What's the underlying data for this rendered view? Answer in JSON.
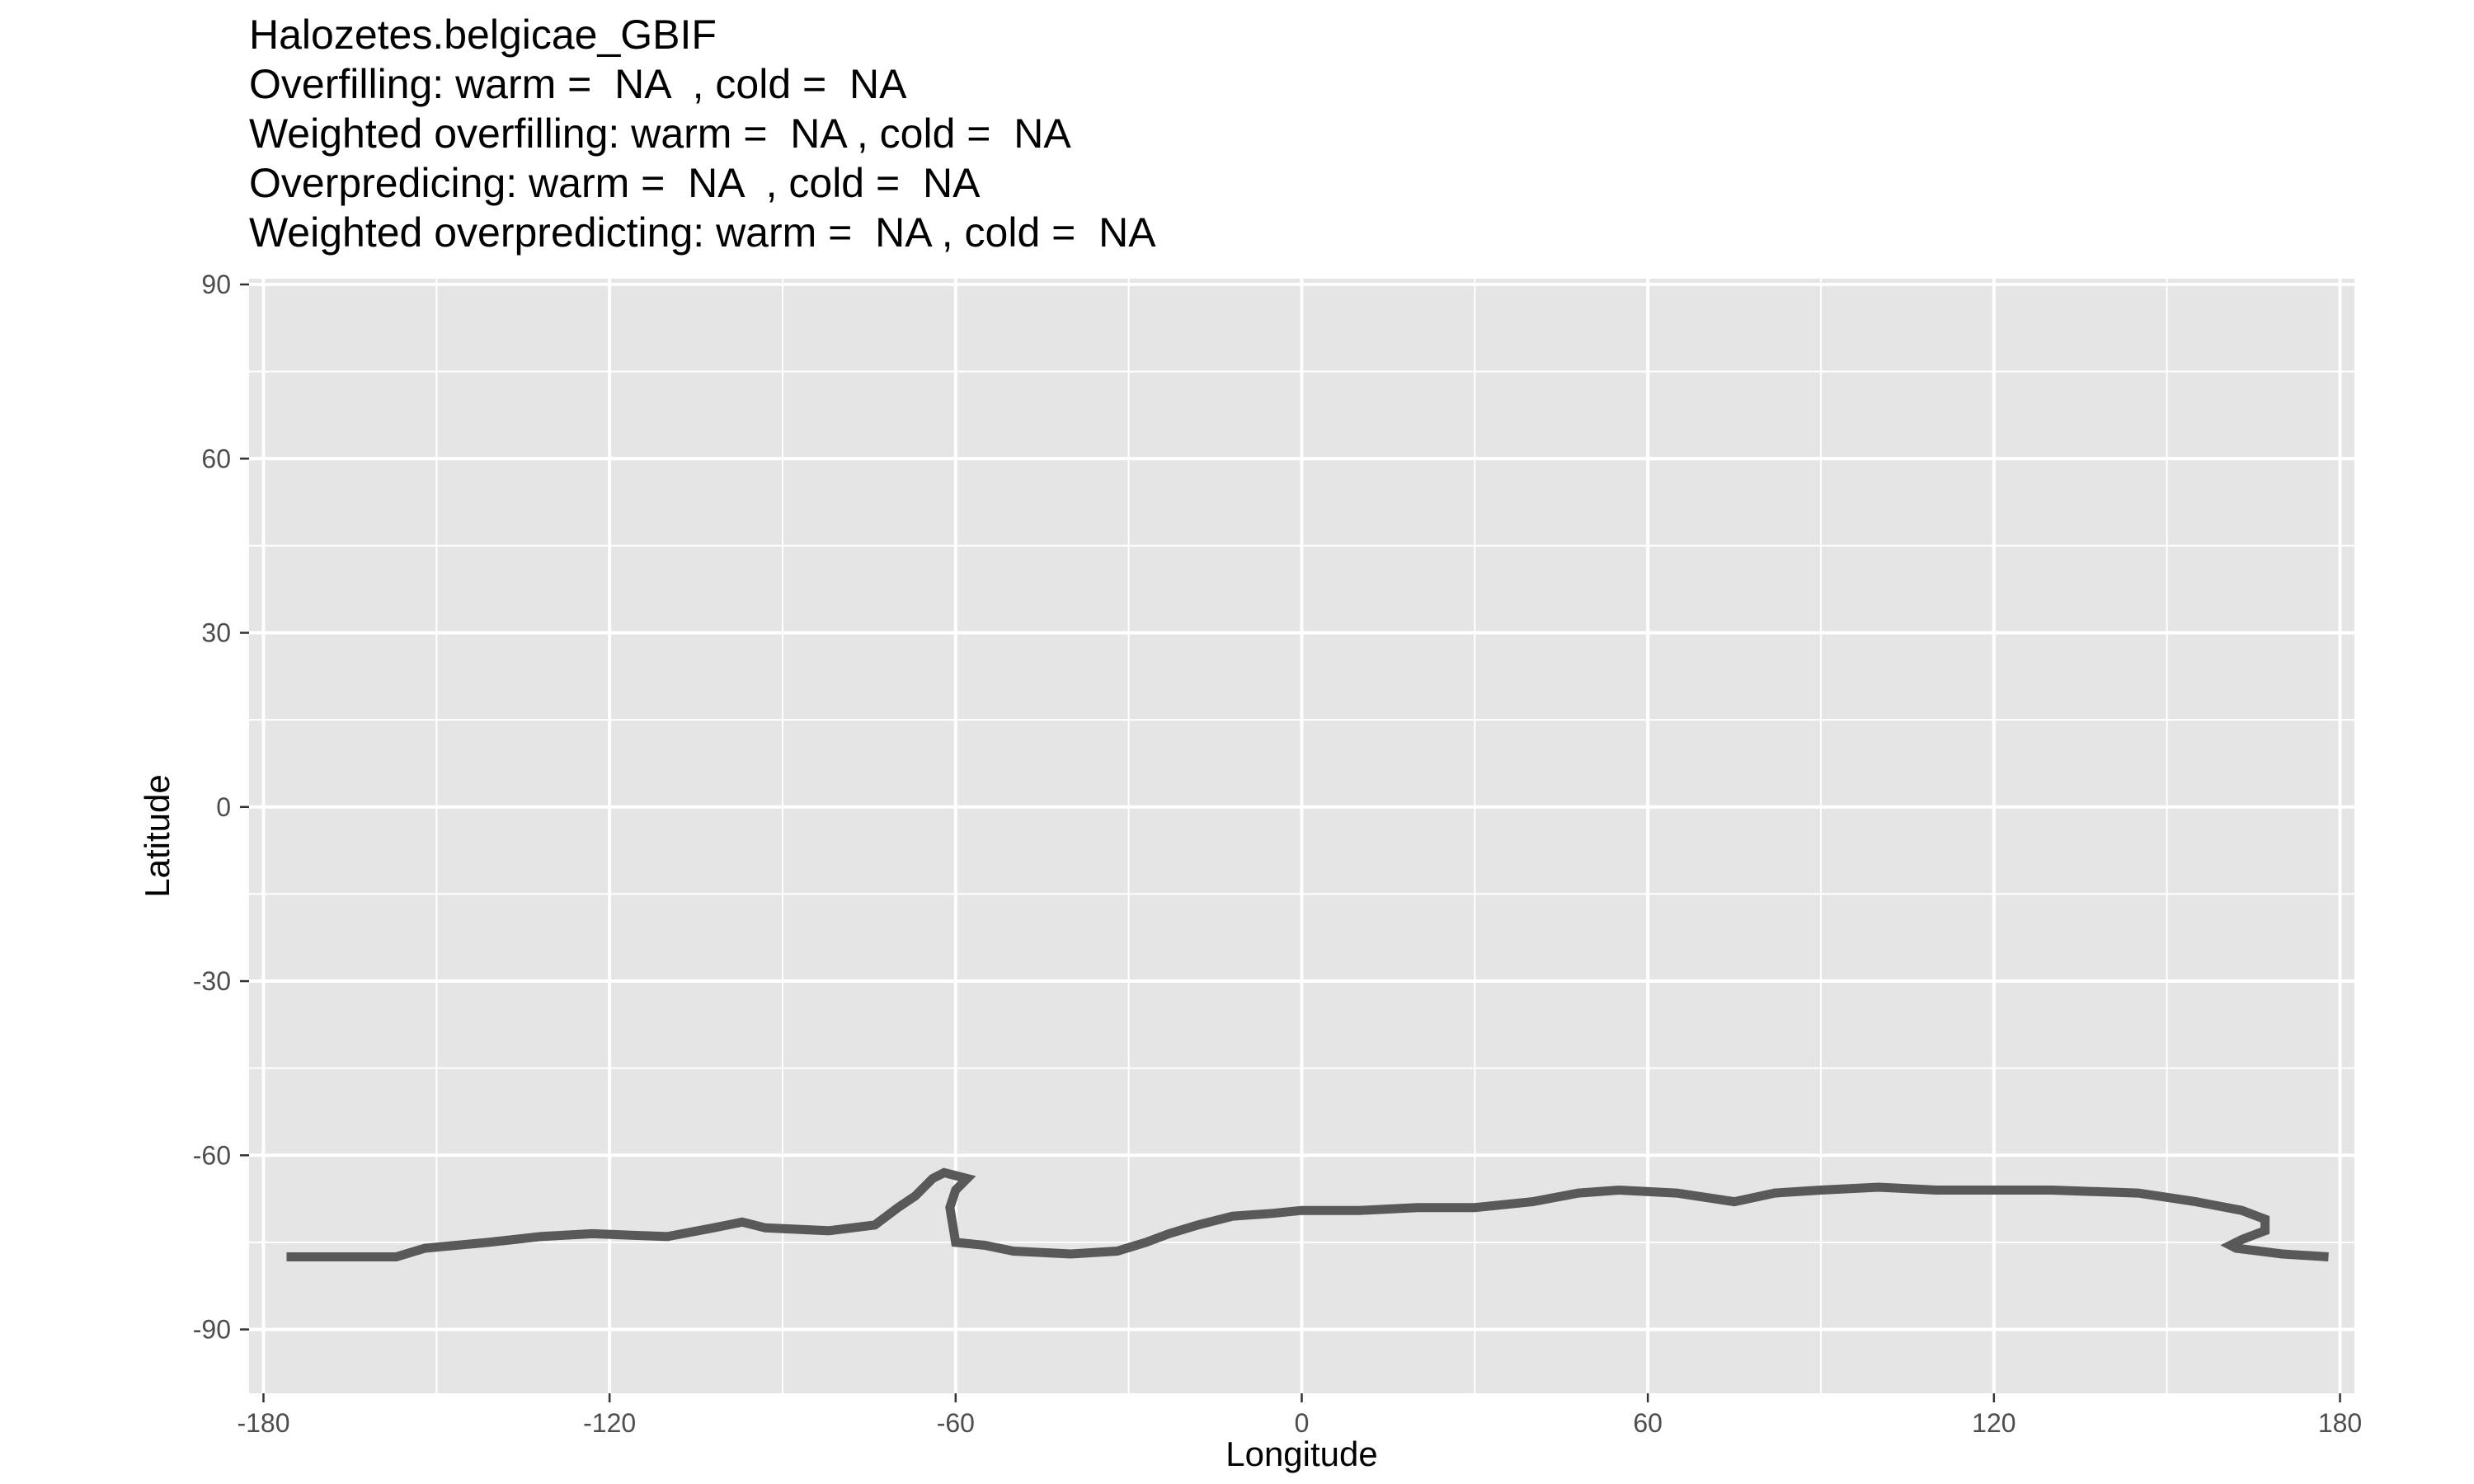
{
  "chart_data": {
    "type": "line",
    "title_lines": [
      "Halozetes.belgicae_GBIF",
      "Overfilling: warm =  NA  , cold =  NA",
      "Weighted overfilling: warm =  NA , cold =  NA",
      "Overpredicing: warm =  NA  , cold =  NA",
      "Weighted overpredicting: warm =  NA , cold =  NA"
    ],
    "xlabel": "Longitude",
    "ylabel": "Latitude",
    "xlim": [
      -182.5,
      182.5
    ],
    "ylim": [
      -101,
      91
    ],
    "x_ticks": [
      -180,
      -120,
      -60,
      0,
      60,
      120,
      180
    ],
    "y_ticks": [
      90,
      60,
      30,
      0,
      -30,
      -60,
      -90
    ],
    "grid": true,
    "colors": {
      "panel": "#e5e5e5",
      "grid": "#ffffff",
      "line": "#595959"
    },
    "series": [
      {
        "values": [
          [
            -176,
            -77.5
          ],
          [
            -157,
            -77.5
          ],
          [
            -152,
            -76
          ],
          [
            -141,
            -75
          ],
          [
            -132,
            -74
          ],
          [
            -123,
            -73.5
          ],
          [
            -110,
            -74
          ],
          [
            -102,
            -72.5
          ],
          [
            -97,
            -71.5
          ],
          [
            -93,
            -72.5
          ],
          [
            -82,
            -73
          ],
          [
            -74,
            -72
          ],
          [
            -70,
            -69
          ],
          [
            -67,
            -67
          ],
          [
            -64,
            -64
          ],
          [
            -62,
            -63
          ],
          [
            -58,
            -64
          ],
          [
            -60,
            -66
          ],
          [
            -61,
            -69
          ],
          [
            -60,
            -75
          ],
          [
            -55,
            -75.5
          ],
          [
            -50,
            -76.5
          ],
          [
            -40,
            -77
          ],
          [
            -32,
            -76.5
          ],
          [
            -27,
            -75
          ],
          [
            -23,
            -73.5
          ],
          [
            -18,
            -72
          ],
          [
            -12,
            -70.5
          ],
          [
            -5,
            -70
          ],
          [
            0,
            -69.5
          ],
          [
            10,
            -69.5
          ],
          [
            20,
            -69
          ],
          [
            30,
            -69
          ],
          [
            40,
            -68
          ],
          [
            48,
            -66.5
          ],
          [
            55,
            -66
          ],
          [
            65,
            -66.5
          ],
          [
            75,
            -68
          ],
          [
            82,
            -66.5
          ],
          [
            90,
            -66
          ],
          [
            100,
            -65.5
          ],
          [
            110,
            -66
          ],
          [
            130,
            -66
          ],
          [
            145,
            -66.5
          ],
          [
            155,
            -68
          ],
          [
            163,
            -69.5
          ],
          [
            167,
            -71
          ],
          [
            167,
            -73
          ],
          [
            163,
            -74.5
          ],
          [
            161,
            -75.5
          ],
          [
            162,
            -76
          ],
          [
            170,
            -77
          ],
          [
            178,
            -77.5
          ]
        ]
      }
    ]
  }
}
